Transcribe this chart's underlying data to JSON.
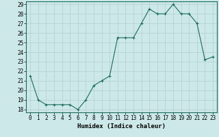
{
  "x": [
    0,
    1,
    2,
    3,
    4,
    5,
    6,
    7,
    8,
    9,
    10,
    11,
    12,
    13,
    14,
    15,
    16,
    17,
    18,
    19,
    20,
    21,
    22,
    23
  ],
  "y": [
    21.5,
    19.0,
    18.5,
    18.5,
    18.5,
    18.5,
    18.0,
    19.0,
    20.5,
    21.0,
    21.5,
    25.5,
    25.5,
    25.5,
    27.0,
    28.5,
    28.0,
    28.0,
    29.0,
    28.0,
    28.0,
    27.0,
    23.2,
    23.5
  ],
  "xlabel": "Humidex (Indice chaleur)",
  "ylim_min": 18,
  "ylim_max": 29,
  "xlim_min": -0.5,
  "xlim_max": 23.5,
  "yticks": [
    18,
    19,
    20,
    21,
    22,
    23,
    24,
    25,
    26,
    27,
    28,
    29
  ],
  "xticks": [
    0,
    1,
    2,
    3,
    4,
    5,
    6,
    7,
    8,
    9,
    10,
    11,
    12,
    13,
    14,
    15,
    16,
    17,
    18,
    19,
    20,
    21,
    22,
    23
  ],
  "line_color": "#1a6b5a",
  "marker": "+",
  "bg_color": "#cce8e8",
  "grid_color": "#b0cfcf",
  "tick_fontsize": 5.5,
  "xlabel_fontsize": 6.5,
  "xlabel_fontweight": "bold",
  "linewidth": 0.8,
  "markersize": 3,
  "markeredgewidth": 0.8
}
